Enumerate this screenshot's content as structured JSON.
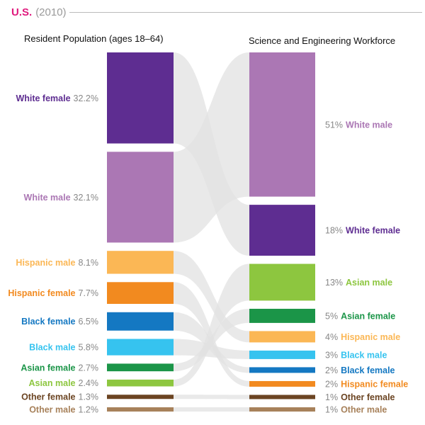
{
  "header": {
    "region": "U.S.",
    "year": "(2010)",
    "region_color": "#e0197d",
    "year_color": "#9a9a9a"
  },
  "chart_data": {
    "type": "flow",
    "left_column_title": "Resident Population (ages 18–64)",
    "right_column_title": "Science and Engineering Workforce",
    "groups": [
      {
        "id": "white-female",
        "name": "White female",
        "population_pct": 32.2,
        "population_label": "32.2%",
        "workforce_pct": 18,
        "workforce_label": "18%",
        "color": "#5e2d91"
      },
      {
        "id": "white-male",
        "name": "White male",
        "population_pct": 32.1,
        "population_label": "32.1%",
        "workforce_pct": 51,
        "workforce_label": "51%",
        "color": "#ab77b4"
      },
      {
        "id": "hispanic-male",
        "name": "Hispanic male",
        "population_pct": 8.1,
        "population_label": "8.1%",
        "workforce_pct": 4,
        "workforce_label": "4%",
        "color": "#fbb755"
      },
      {
        "id": "hispanic-female",
        "name": "Hispanic female",
        "population_pct": 7.7,
        "population_label": "7.7%",
        "workforce_pct": 2,
        "workforce_label": "2%",
        "color": "#f28a1f"
      },
      {
        "id": "black-female",
        "name": "Black female",
        "population_pct": 6.5,
        "population_label": "6.5%",
        "workforce_pct": 2,
        "workforce_label": "2%",
        "color": "#1478c2"
      },
      {
        "id": "black-male",
        "name": "Black male",
        "population_pct": 5.8,
        "population_label": "5.8%",
        "workforce_pct": 3,
        "workforce_label": "3%",
        "color": "#36c3ef"
      },
      {
        "id": "asian-female",
        "name": "Asian female",
        "population_pct": 2.7,
        "population_label": "2.7%",
        "workforce_pct": 5,
        "workforce_label": "5%",
        "color": "#1b9548"
      },
      {
        "id": "asian-male",
        "name": "Asian male",
        "population_pct": 2.4,
        "population_label": "2.4%",
        "workforce_pct": 13,
        "workforce_label": "13%",
        "color": "#8dc63f"
      },
      {
        "id": "other-female",
        "name": "Other female",
        "population_pct": 1.3,
        "population_label": "1.3%",
        "workforce_pct": 1,
        "workforce_label": "1%",
        "color": "#6b4422"
      },
      {
        "id": "other-male",
        "name": "Other male",
        "population_pct": 1.2,
        "population_label": "1.2%",
        "workforce_pct": 1,
        "workforce_label": "1%",
        "color": "#a7815a"
      }
    ],
    "workforce_order": [
      "white-male",
      "white-female",
      "asian-male",
      "asian-female",
      "hispanic-male",
      "black-male",
      "black-female",
      "hispanic-female",
      "other-female",
      "other-male"
    ],
    "flow_color": "#e2e2e2"
  }
}
